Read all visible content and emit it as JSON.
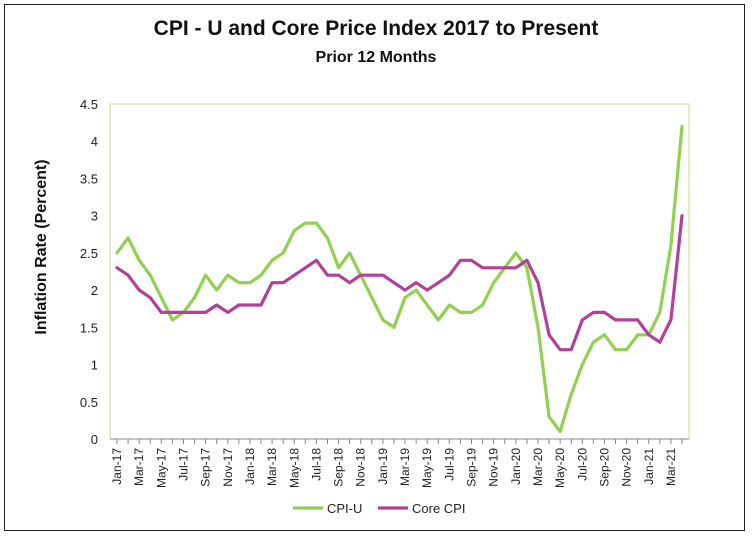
{
  "chart_data": {
    "type": "line",
    "title": "CPI - U and Core Price Index 2017 to Present",
    "subtitle": "Prior 12 Months",
    "xlabel": "",
    "ylabel": "Inflation Rate (Percent)",
    "ylim": [
      0,
      4.5
    ],
    "yticks": [
      "0",
      "0.5",
      "1",
      "1.5",
      "2",
      "2.5",
      "3",
      "3.5",
      "4",
      "4.5"
    ],
    "grid": false,
    "legend_position": "bottom",
    "x": [
      "Jan-17",
      "Feb-17",
      "Mar-17",
      "Apr-17",
      "May-17",
      "Jun-17",
      "Jul-17",
      "Aug-17",
      "Sep-17",
      "Oct-17",
      "Nov-17",
      "Dec-17",
      "Jan-18",
      "Feb-18",
      "Mar-18",
      "Apr-18",
      "May-18",
      "Jun-18",
      "Jul-18",
      "Aug-18",
      "Sep-18",
      "Oct-18",
      "Nov-18",
      "Dec-18",
      "Jan-19",
      "Feb-19",
      "Mar-19",
      "Apr-19",
      "May-19",
      "Jun-19",
      "Jul-19",
      "Aug-19",
      "Sep-19",
      "Oct-19",
      "Nov-19",
      "Dec-19",
      "Jan-20",
      "Feb-20",
      "Mar-20",
      "Apr-20",
      "May-20",
      "Jun-20",
      "Jul-20",
      "Aug-20",
      "Sep-20",
      "Oct-20",
      "Nov-20",
      "Dec-20",
      "Jan-21",
      "Feb-21",
      "Mar-21",
      "Apr-21"
    ],
    "tick_labels": [
      "Jan-17",
      "Mar-17",
      "May-17",
      "Jul-17",
      "Sep-17",
      "Nov-17",
      "Jan-18",
      "Mar-18",
      "May-18",
      "Jul-18",
      "Sep-18",
      "Nov-18",
      "Jan-19",
      "Mar-19",
      "May-19",
      "Jul-19",
      "Sep-19",
      "Nov-19",
      "Jan-20",
      "Mar-20",
      "May-20",
      "Jul-20",
      "Sep-20",
      "Nov-20",
      "Jan-21",
      "Mar-21"
    ],
    "series": [
      {
        "name": "CPI-U",
        "color": "#92D050",
        "values": [
          2.5,
          2.7,
          2.4,
          2.2,
          1.9,
          1.6,
          1.7,
          1.9,
          2.2,
          2.0,
          2.2,
          2.1,
          2.1,
          2.2,
          2.4,
          2.5,
          2.8,
          2.9,
          2.9,
          2.7,
          2.3,
          2.5,
          2.2,
          1.9,
          1.6,
          1.5,
          1.9,
          2.0,
          1.8,
          1.6,
          1.8,
          1.7,
          1.7,
          1.8,
          2.1,
          2.3,
          2.5,
          2.3,
          1.5,
          0.3,
          0.1,
          0.6,
          1.0,
          1.3,
          1.4,
          1.2,
          1.2,
          1.4,
          1.4,
          1.7,
          2.6,
          4.2
        ]
      },
      {
        "name": "Core CPI",
        "color": "#B0409A",
        "values": [
          2.3,
          2.2,
          2.0,
          1.9,
          1.7,
          1.7,
          1.7,
          1.7,
          1.7,
          1.8,
          1.7,
          1.8,
          1.8,
          1.8,
          2.1,
          2.1,
          2.2,
          2.3,
          2.4,
          2.2,
          2.2,
          2.1,
          2.2,
          2.2,
          2.2,
          2.1,
          2.0,
          2.1,
          2.0,
          2.1,
          2.2,
          2.4,
          2.4,
          2.3,
          2.3,
          2.3,
          2.3,
          2.4,
          2.1,
          1.4,
          1.2,
          1.2,
          1.6,
          1.7,
          1.7,
          1.6,
          1.6,
          1.6,
          1.4,
          1.3,
          1.6,
          3.0
        ]
      }
    ]
  }
}
